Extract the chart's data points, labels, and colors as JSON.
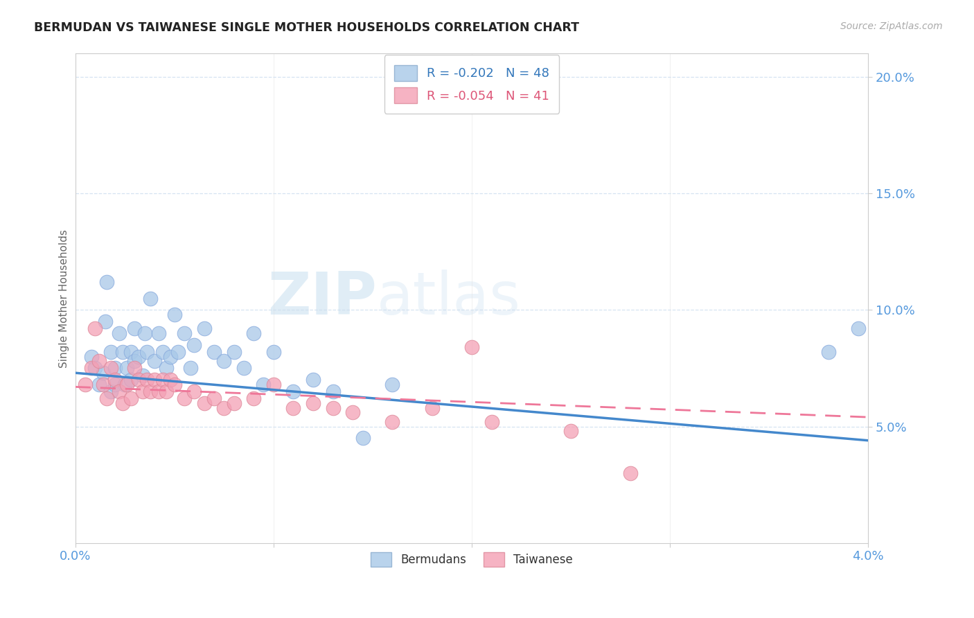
{
  "title": "BERMUDAN VS TAIWANESE SINGLE MOTHER HOUSEHOLDS CORRELATION CHART",
  "source": "Source: ZipAtlas.com",
  "ylabel": "Single Mother Households",
  "xlim": [
    0.0,
    0.04
  ],
  "ylim": [
    0.0,
    0.21
  ],
  "yticks": [
    0.05,
    0.1,
    0.15,
    0.2
  ],
  "ytick_labels": [
    "5.0%",
    "10.0%",
    "15.0%",
    "20.0%"
  ],
  "xticks": [
    0.0,
    0.01,
    0.02,
    0.03,
    0.04
  ],
  "xtick_labels": [
    "0.0%",
    "",
    "",
    "",
    "4.0%"
  ],
  "legend_bermudans": "Bermudans",
  "legend_taiwanese": "Taiwanese",
  "legend_r_bermudans": "R = -0.202",
  "legend_n_bermudans": "N = 48",
  "legend_r_taiwanese": "R = -0.054",
  "legend_n_taiwanese": "N = 41",
  "blue_color": "#a8c8e8",
  "pink_color": "#f4a0b5",
  "blue_line_color": "#4488cc",
  "pink_line_color": "#ee7799",
  "axis_color": "#5599dd",
  "watermark_zip": "ZIP",
  "watermark_atlas": "atlas",
  "bermudans_x": [
    0.0008,
    0.001,
    0.0012,
    0.0014,
    0.0015,
    0.0016,
    0.0018,
    0.0018,
    0.002,
    0.002,
    0.0022,
    0.0024,
    0.0025,
    0.0026,
    0.0028,
    0.0028,
    0.003,
    0.003,
    0.0032,
    0.0034,
    0.0035,
    0.0036,
    0.0038,
    0.004,
    0.0042,
    0.0044,
    0.0046,
    0.0048,
    0.005,
    0.0052,
    0.0055,
    0.0058,
    0.006,
    0.0065,
    0.007,
    0.0075,
    0.008,
    0.0085,
    0.009,
    0.0095,
    0.01,
    0.011,
    0.012,
    0.013,
    0.0145,
    0.016,
    0.038,
    0.0395
  ],
  "bermudans_y": [
    0.08,
    0.075,
    0.068,
    0.073,
    0.095,
    0.112,
    0.082,
    0.065,
    0.075,
    0.068,
    0.09,
    0.082,
    0.068,
    0.075,
    0.082,
    0.07,
    0.092,
    0.078,
    0.08,
    0.072,
    0.09,
    0.082,
    0.105,
    0.078,
    0.09,
    0.082,
    0.075,
    0.08,
    0.098,
    0.082,
    0.09,
    0.075,
    0.085,
    0.092,
    0.082,
    0.078,
    0.082,
    0.075,
    0.09,
    0.068,
    0.082,
    0.065,
    0.07,
    0.065,
    0.045,
    0.068,
    0.082,
    0.092
  ],
  "taiwanese_x": [
    0.0005,
    0.0008,
    0.001,
    0.0012,
    0.0014,
    0.0016,
    0.0018,
    0.002,
    0.0022,
    0.0024,
    0.0026,
    0.0028,
    0.003,
    0.0032,
    0.0034,
    0.0036,
    0.0038,
    0.004,
    0.0042,
    0.0044,
    0.0046,
    0.0048,
    0.005,
    0.0055,
    0.006,
    0.0065,
    0.007,
    0.0075,
    0.008,
    0.009,
    0.01,
    0.011,
    0.012,
    0.013,
    0.014,
    0.016,
    0.018,
    0.02,
    0.021,
    0.025,
    0.028
  ],
  "taiwanese_y": [
    0.068,
    0.075,
    0.092,
    0.078,
    0.068,
    0.062,
    0.075,
    0.07,
    0.065,
    0.06,
    0.068,
    0.062,
    0.075,
    0.07,
    0.065,
    0.07,
    0.065,
    0.07,
    0.065,
    0.07,
    0.065,
    0.07,
    0.068,
    0.062,
    0.065,
    0.06,
    0.062,
    0.058,
    0.06,
    0.062,
    0.068,
    0.058,
    0.06,
    0.058,
    0.056,
    0.052,
    0.058,
    0.084,
    0.052,
    0.048,
    0.03
  ],
  "blue_trend_x": [
    0.0,
    0.04
  ],
  "blue_trend_y": [
    0.073,
    0.044
  ],
  "pink_trend_x": [
    0.0,
    0.04
  ],
  "pink_trend_y": [
    0.067,
    0.054
  ]
}
